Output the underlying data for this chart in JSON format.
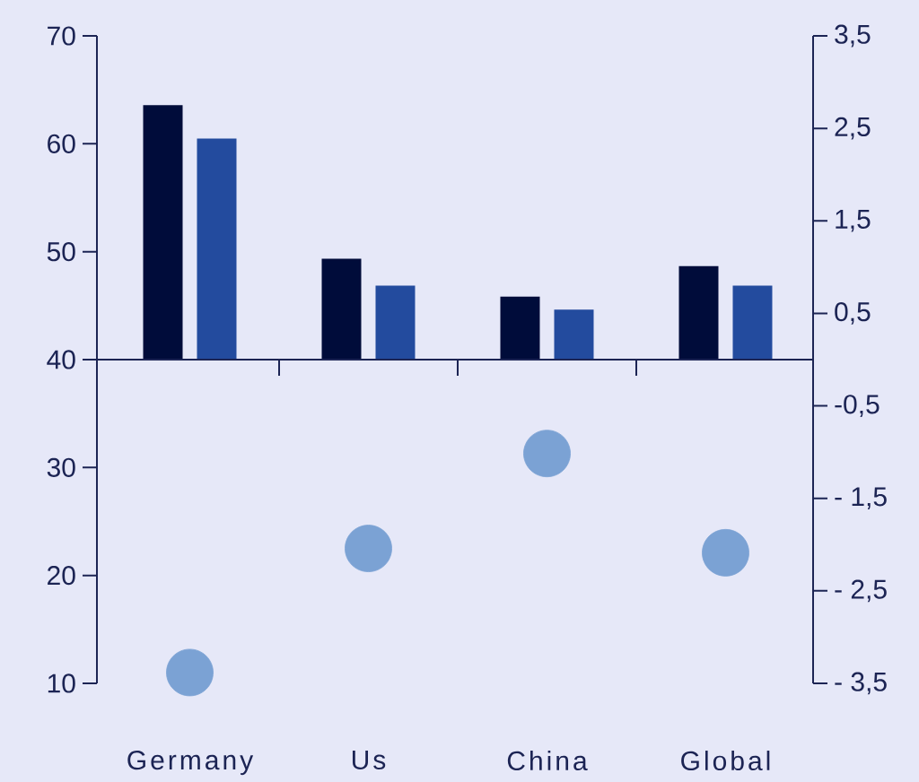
{
  "chart_data": {
    "type": "bar",
    "categories": [
      "Germany",
      "Us",
      "China",
      "Global"
    ],
    "series": [
      {
        "color": "#000c3a",
        "values": [
          2.75,
          1.09,
          0.68,
          1.01
        ],
        "axis": "y2"
      },
      {
        "color": "#234b9e",
        "values": [
          2.39,
          0.8,
          0.54,
          0.8
        ],
        "axis": "y2"
      },
      {
        "type": "scatter",
        "color": "#7ba2d4",
        "values": [
          11.0,
          22.5,
          31.3,
          22.1
        ]
      }
    ],
    "marker": "circle",
    "ylim": [
      10,
      70
    ],
    "yticks": [
      10,
      20,
      30,
      40,
      50,
      60,
      70
    ],
    "y2lim": [
      -3.5,
      3.5
    ],
    "y2ticks": [
      {
        "value": -3.5,
        "label": "- 3,5"
      },
      {
        "value": -2.5,
        "label": "- 2,5"
      },
      {
        "value": -1.5,
        "label": "- 1,5"
      },
      {
        "value": -0.5,
        "label": "-0,5"
      },
      {
        "value": 0.5,
        "label": "0,5"
      },
      {
        "value": 1.5,
        "label": "1,5"
      },
      {
        "value": 2.5,
        "label": "2,5"
      },
      {
        "value": 3.5,
        "label": "3,5"
      }
    ]
  }
}
